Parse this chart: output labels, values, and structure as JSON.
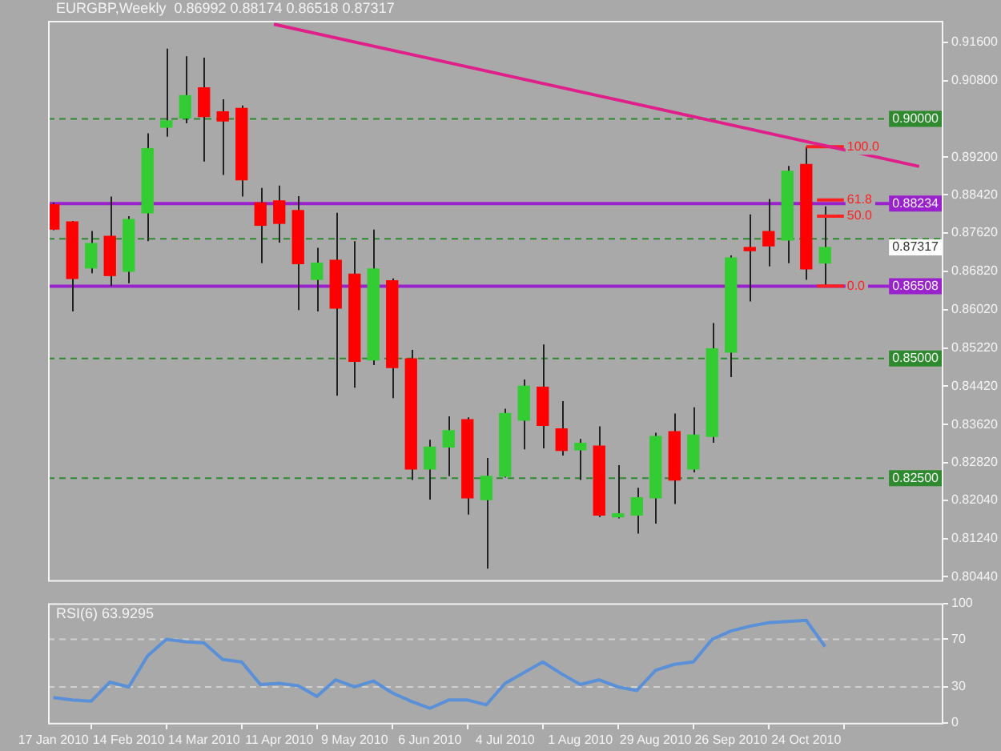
{
  "chart_data": [
    {
      "type": "candlestick",
      "title": "EURGBP,Weekly  0.86992 0.88174 0.86518 0.87317",
      "x": [
        "2010-01-17",
        "2010-01-24",
        "2010-01-31",
        "2010-02-07",
        "2010-02-14",
        "2010-02-21",
        "2010-02-28",
        "2010-03-07",
        "2010-03-14",
        "2010-03-21",
        "2010-03-28",
        "2010-04-04",
        "2010-04-11",
        "2010-04-18",
        "2010-04-25",
        "2010-05-02",
        "2010-05-09",
        "2010-05-16",
        "2010-05-23",
        "2010-05-30",
        "2010-06-06",
        "2010-06-13",
        "2010-06-20",
        "2010-06-27",
        "2010-07-04",
        "2010-07-11",
        "2010-07-18",
        "2010-07-25",
        "2010-08-01",
        "2010-08-08",
        "2010-08-15",
        "2010-08-22",
        "2010-08-29",
        "2010-09-05",
        "2010-09-12",
        "2010-09-19",
        "2010-09-26",
        "2010-10-03",
        "2010-10-10",
        "2010-10-17",
        "2010-10-24",
        "2010-10-31"
      ],
      "ohlc": [
        [
          0.8821,
          0.8825,
          0.8768,
          0.877
        ],
        [
          0.8785,
          0.8787,
          0.8598,
          0.8667
        ],
        [
          0.8689,
          0.8766,
          0.8678,
          0.874
        ],
        [
          0.8755,
          0.8838,
          0.8651,
          0.8673
        ],
        [
          0.8682,
          0.8797,
          0.8657,
          0.879
        ],
        [
          0.8804,
          0.897,
          0.8745,
          0.8938
        ],
        [
          0.8983,
          0.9147,
          0.8963,
          0.8996
        ],
        [
          0.9002,
          0.9131,
          0.8991,
          0.9049
        ],
        [
          0.9065,
          0.9128,
          0.8911,
          0.9005
        ],
        [
          0.9015,
          0.9041,
          0.8883,
          0.8996
        ],
        [
          0.9022,
          0.9028,
          0.8838,
          0.8873
        ],
        [
          0.8825,
          0.8856,
          0.8699,
          0.8778
        ],
        [
          0.8829,
          0.8861,
          0.8742,
          0.8782
        ],
        [
          0.8809,
          0.8839,
          0.8601,
          0.8698
        ],
        [
          0.8665,
          0.8731,
          0.8598,
          0.8699
        ],
        [
          0.8705,
          0.8804,
          0.8422,
          0.8605
        ],
        [
          0.8676,
          0.8745,
          0.8439,
          0.8494
        ],
        [
          0.8497,
          0.8769,
          0.8486,
          0.8687
        ],
        [
          0.8662,
          0.8667,
          0.8417,
          0.8481
        ],
        [
          0.8499,
          0.8518,
          0.8246,
          0.8269
        ],
        [
          0.8269,
          0.833,
          0.8205,
          0.8315
        ],
        [
          0.8315,
          0.8379,
          0.8254,
          0.8349
        ],
        [
          0.8372,
          0.8377,
          0.8174,
          0.8209
        ],
        [
          0.8205,
          0.8292,
          0.8061,
          0.8254
        ],
        [
          0.8254,
          0.8395,
          0.8251,
          0.8385
        ],
        [
          0.8371,
          0.8456,
          0.831,
          0.8442
        ],
        [
          0.844,
          0.8529,
          0.8312,
          0.836
        ],
        [
          0.8353,
          0.8411,
          0.8297,
          0.8308
        ],
        [
          0.8309,
          0.8332,
          0.8246,
          0.8323
        ],
        [
          0.8317,
          0.8358,
          0.8169,
          0.8173
        ],
        [
          0.8169,
          0.8277,
          0.8166,
          0.8175
        ],
        [
          0.8173,
          0.823,
          0.8134,
          0.8209
        ],
        [
          0.8209,
          0.8345,
          0.8155,
          0.8337
        ],
        [
          0.8347,
          0.8385,
          0.8196,
          0.8246
        ],
        [
          0.8269,
          0.8398,
          0.8262,
          0.834
        ],
        [
          0.8337,
          0.8574,
          0.8324,
          0.852
        ],
        [
          0.8513,
          0.8715,
          0.8461,
          0.871
        ],
        [
          0.873,
          0.8801,
          0.8619,
          0.8725
        ],
        [
          0.8765,
          0.8833,
          0.8692,
          0.8735
        ],
        [
          0.8747,
          0.8902,
          0.8699,
          0.8891
        ],
        [
          0.8905,
          0.8942,
          0.8664,
          0.8687
        ],
        [
          0.86992,
          0.88174,
          0.86518,
          0.87317
        ]
      ],
      "series": [
        {
          "type": "line",
          "color": "#e0208a",
          "x": [
            "2010-04-09",
            "2010-12-05"
          ],
          "values": [
            0.9198,
            0.8901
          ]
        },
        {
          "type": "line",
          "name": "100.0",
          "color": "#ff2020",
          "x": [
            "2010-10-24",
            "2010-11-07"
          ],
          "values": [
            0.8942,
            0.8942
          ]
        },
        {
          "type": "line",
          "name": "61.8",
          "color": "#ff2020",
          "x": [
            "2010-10-28",
            "2010-11-07"
          ],
          "values": [
            0.8831,
            0.8831
          ]
        },
        {
          "type": "line",
          "name": "50.0",
          "color": "#ff2020",
          "x": [
            "2010-10-28",
            "2010-11-07"
          ],
          "values": [
            0.8797,
            0.8797
          ]
        },
        {
          "type": "line",
          "name": "0.0",
          "color": "#ff2020",
          "x": [
            "2010-10-28",
            "2010-11-07"
          ],
          "values": [
            0.8651,
            0.8651
          ]
        }
      ],
      "xlim": [
        "2010-01-15",
        "2010-12-14"
      ],
      "ylim": [
        0.8034,
        0.9205
      ],
      "yticks": [
        {
          "value": 0.916,
          "label": "0.91600"
        },
        {
          "value": 0.908,
          "label": "0.90800"
        },
        {
          "value": 0.892,
          "label": "0.89200"
        },
        {
          "value": 0.8842,
          "label": "0.88420"
        },
        {
          "value": 0.8762,
          "label": "0.87620"
        },
        {
          "value": 0.8682,
          "label": "0.86820"
        },
        {
          "value": 0.8602,
          "label": "0.86020"
        },
        {
          "value": 0.8522,
          "label": "0.85220"
        },
        {
          "value": 0.8442,
          "label": "0.84420"
        },
        {
          "value": 0.8362,
          "label": "0.83620"
        },
        {
          "value": 0.8282,
          "label": "0.82820"
        },
        {
          "value": 0.8204,
          "label": "0.82040"
        },
        {
          "value": 0.8124,
          "label": "0.81240"
        },
        {
          "value": 0.8044,
          "label": "0.80440"
        }
      ],
      "ref_lines": [
        {
          "axis": "y",
          "value": 0.9,
          "label": "0.90000",
          "color": "#2f8a2f",
          "line_style": "dashed"
        },
        {
          "axis": "y",
          "value": 0.875,
          "color": "#2f8a2f",
          "line_style": "dashed"
        },
        {
          "axis": "y",
          "value": 0.85,
          "label": "0.85000",
          "color": "#2f8a2f",
          "line_style": "dashed"
        },
        {
          "axis": "y",
          "value": 0.825,
          "label": "0.82500",
          "color": "#2f8a2f",
          "line_style": "dashed"
        },
        {
          "axis": "y",
          "value": 0.88234,
          "label": "0.88234",
          "color": "#9a22cc",
          "line_style": "solid"
        },
        {
          "axis": "y",
          "value": 0.86508,
          "label": "0.86508",
          "color": "#9a22cc",
          "line_style": "solid"
        }
      ],
      "annotations": [
        {
          "text": "0.87317",
          "y": 0.87317
        }
      ],
      "tick_labels": "y",
      "grid": false,
      "legend": false
    },
    {
      "type": "line",
      "title": "RSI(6) 63.9295",
      "x": [
        "2010-01-17",
        "2010-01-24",
        "2010-01-31",
        "2010-02-07",
        "2010-02-14",
        "2010-02-21",
        "2010-02-28",
        "2010-03-07",
        "2010-03-14",
        "2010-03-21",
        "2010-03-28",
        "2010-04-04",
        "2010-04-11",
        "2010-04-18",
        "2010-04-25",
        "2010-05-02",
        "2010-05-09",
        "2010-05-16",
        "2010-05-23",
        "2010-05-30",
        "2010-06-06",
        "2010-06-13",
        "2010-06-20",
        "2010-06-27",
        "2010-07-04",
        "2010-07-11",
        "2010-07-18",
        "2010-07-25",
        "2010-08-01",
        "2010-08-08",
        "2010-08-15",
        "2010-08-22",
        "2010-08-29",
        "2010-09-05",
        "2010-09-12",
        "2010-09-19",
        "2010-09-26",
        "2010-10-03",
        "2010-10-10",
        "2010-10-17",
        "2010-10-24",
        "2010-10-31"
      ],
      "series": [
        {
          "color": "#5a90d8",
          "values": [
            21,
            19,
            18,
            34,
            30,
            56,
            70,
            68,
            67,
            53,
            51,
            32,
            33,
            31,
            22,
            36,
            30,
            35,
            25,
            18,
            12,
            19,
            19,
            15,
            33,
            42,
            51,
            41,
            32,
            36,
            30,
            27,
            44,
            49,
            51,
            70,
            77,
            81,
            84,
            85,
            86,
            63.9295
          ]
        }
      ],
      "xlim": [
        "2010-01-15",
        "2010-12-14"
      ],
      "xticks": [
        {
          "value": "2010-01-17",
          "label": "17 Jan 2010"
        },
        {
          "value": "2010-02-14",
          "label": "14 Feb 2010"
        },
        {
          "value": "2010-03-14",
          "label": "14 Mar 2010"
        },
        {
          "value": "2010-04-11",
          "label": "11 Apr 2010"
        },
        {
          "value": "2010-05-09",
          "label": "9 May 2010"
        },
        {
          "value": "2010-06-06",
          "label": "6 Jun 2010"
        },
        {
          "value": "2010-07-04",
          "label": "4 Jul 2010"
        },
        {
          "value": "2010-08-01",
          "label": "1 Aug 2010"
        },
        {
          "value": "2010-08-29",
          "label": "29 Aug 2010"
        },
        {
          "value": "2010-09-26",
          "label": "26 Sep 2010"
        },
        {
          "value": "2010-10-24",
          "label": "24 Oct 2010"
        }
      ],
      "ylim": [
        -1.5,
        100.2
      ],
      "yticks": [
        0,
        30,
        70,
        100
      ],
      "ref_lines": [
        {
          "axis": "y",
          "value": 30,
          "color": "#cfcfcf",
          "line_style": "dashed"
        },
        {
          "axis": "y",
          "value": 70,
          "color": "#cfcfcf",
          "line_style": "dashed"
        }
      ],
      "grid": false,
      "legend": false
    }
  ]
}
